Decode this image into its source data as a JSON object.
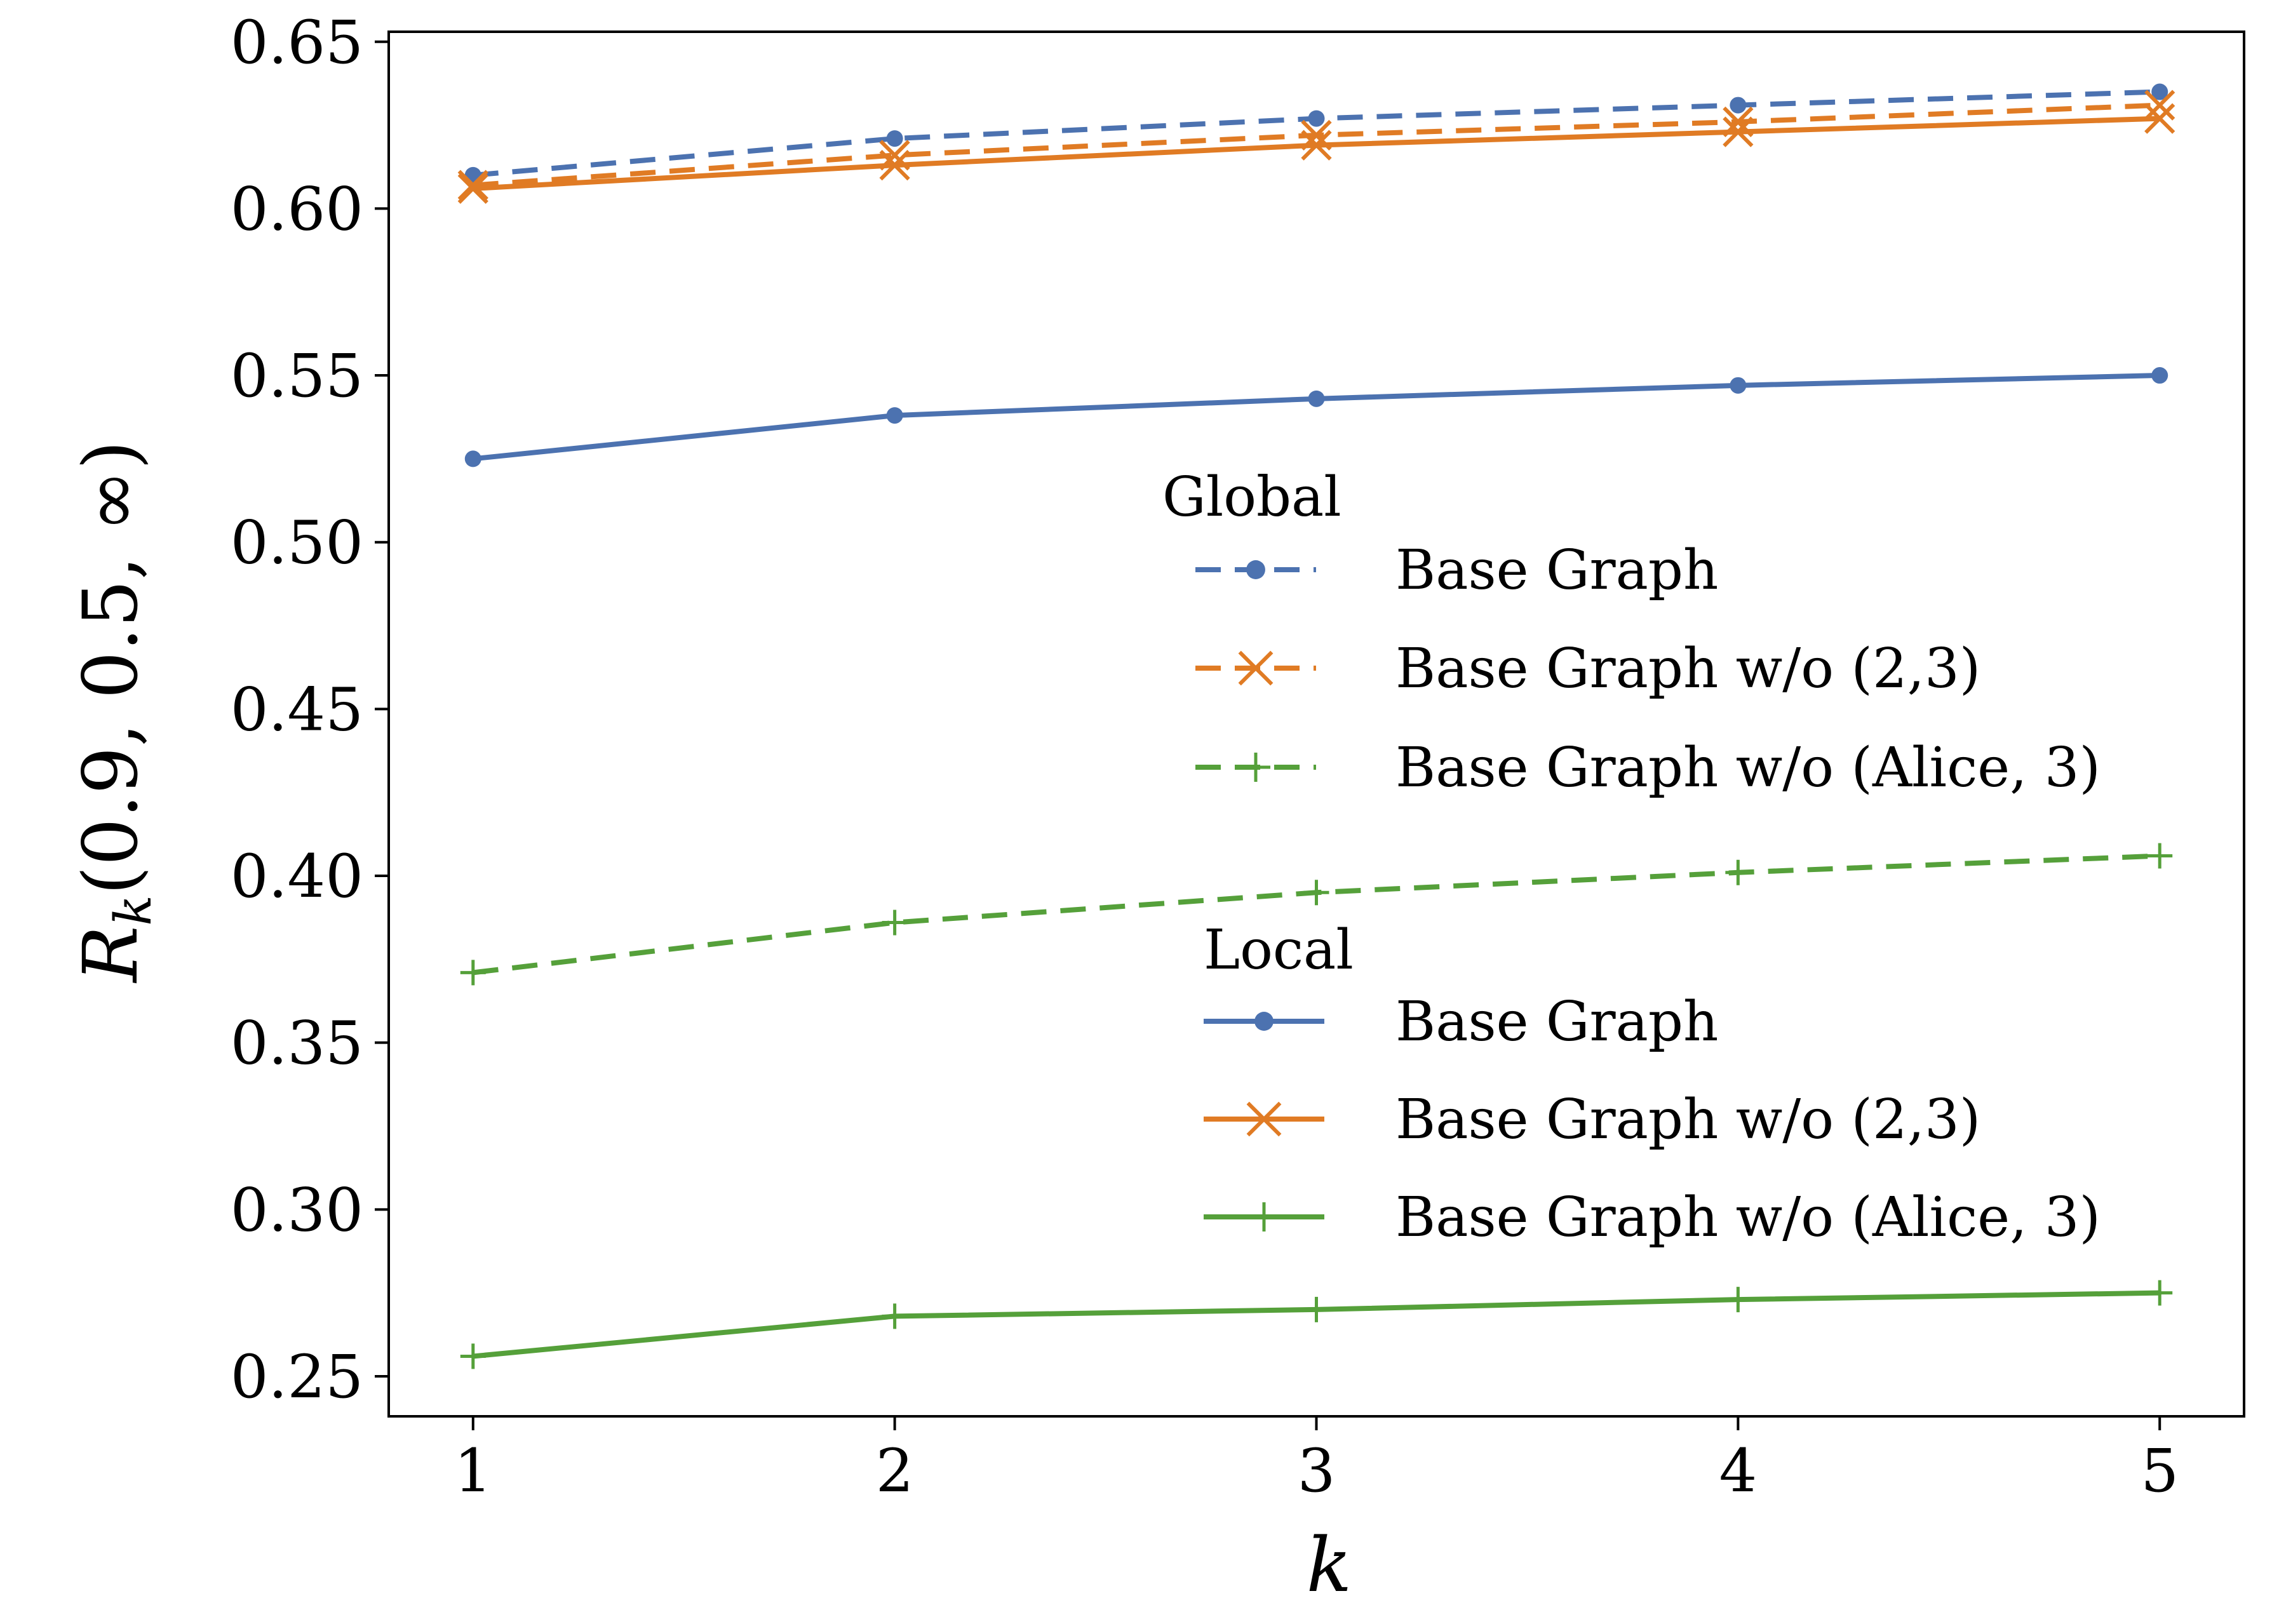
{
  "chart_data": {
    "type": "line",
    "title": "",
    "xlabel": "k",
    "ylabel": "R_k(0.9, 0.5, ∞)",
    "ylabel_parts": {
      "main": "R",
      "sub": "k",
      "args": "(0.9, 0.5, ∞)"
    },
    "x": [
      1,
      2,
      3,
      4,
      5
    ],
    "xlim": [
      0.8,
      5.2
    ],
    "ylim": [
      0.238,
      0.653
    ],
    "xticks": [
      1,
      2,
      3,
      4,
      5
    ],
    "yticks": [
      0.25,
      0.3,
      0.35,
      0.4,
      0.45,
      0.5,
      0.55,
      0.6,
      0.65
    ],
    "ytick_labels": [
      "0.25",
      "0.30",
      "0.35",
      "0.40",
      "0.45",
      "0.50",
      "0.55",
      "0.60",
      "0.65"
    ],
    "grid": false,
    "legend_placement": "center-right",
    "colors": {
      "blue": "#4c72b0",
      "orange": "#e07b24",
      "green": "#55a03a"
    },
    "legend_groups": [
      {
        "title": "Global",
        "series_names": [
          "Global Base Graph",
          "Global Base Graph w/o (2,3)",
          "Global Base Graph w/o (Alice, 3)"
        ]
      },
      {
        "title": "Local",
        "series_names": [
          "Local Base Graph",
          "Local Base Graph w/o (2,3)",
          "Local Base Graph w/o (Alice, 3)"
        ]
      }
    ],
    "series": [
      {
        "name": "Global Base Graph",
        "label": "Base Graph",
        "group": "Global",
        "color": "#4c72b0",
        "dash": "dashed",
        "marker": "dot",
        "values": [
          0.61,
          0.621,
          0.627,
          0.631,
          0.635
        ]
      },
      {
        "name": "Global Base Graph w/o (2,3)",
        "label": "Base Graph w/o (2,3)",
        "group": "Global",
        "color": "#e07b24",
        "dash": "dashed",
        "marker": "x",
        "values": [
          0.607,
          0.616,
          0.622,
          0.626,
          0.631
        ]
      },
      {
        "name": "Global Base Graph w/o (Alice, 3)",
        "label": "Base Graph w/o (Alice, 3)",
        "group": "Global",
        "color": "#55a03a",
        "dash": "dashed",
        "marker": "plus",
        "values": [
          0.371,
          0.386,
          0.395,
          0.401,
          0.406
        ]
      },
      {
        "name": "Local Base Graph",
        "label": "Base Graph",
        "group": "Local",
        "color": "#4c72b0",
        "dash": "solid",
        "marker": "dot",
        "values": [
          0.525,
          0.538,
          0.543,
          0.547,
          0.55
        ]
      },
      {
        "name": "Local Base Graph w/o (2,3)",
        "label": "Base Graph w/o (2,3)",
        "group": "Local",
        "color": "#e07b24",
        "dash": "solid",
        "marker": "x",
        "values": [
          0.606,
          0.613,
          0.619,
          0.623,
          0.627
        ]
      },
      {
        "name": "Local Base Graph w/o (Alice, 3)",
        "label": "Base Graph w/o (Alice, 3)",
        "group": "Local",
        "color": "#55a03a",
        "dash": "solid",
        "marker": "plus",
        "values": [
          0.256,
          0.268,
          0.27,
          0.273,
          0.275
        ]
      }
    ]
  }
}
